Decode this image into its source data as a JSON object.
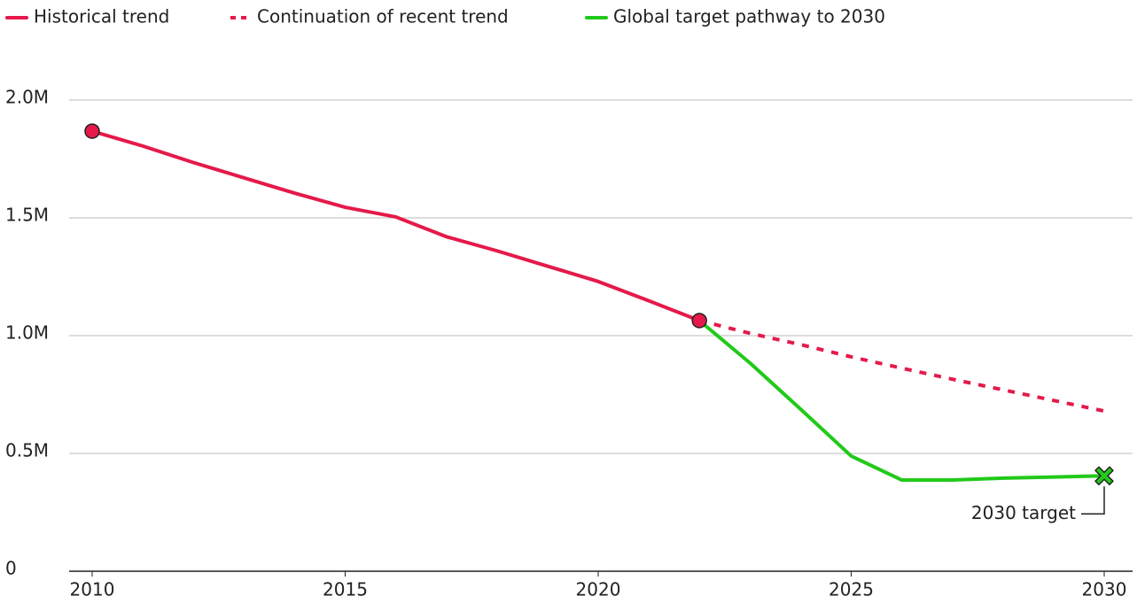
{
  "chart_data": {
    "type": "line",
    "xlim": [
      2010,
      2030
    ],
    "xticks": [
      2010,
      2015,
      2020,
      2025,
      2030
    ],
    "ylim": [
      0,
      2000000
    ],
    "yticks": [
      0,
      {
        "value": 500000,
        "label": "0.5M"
      },
      {
        "value": 1000000,
        "label": "1.0M"
      },
      {
        "value": 1500000,
        "label": "1.5M"
      },
      {
        "value": 2000000,
        "label": "2.0M"
      }
    ],
    "grid": true,
    "legend": "top-left",
    "series": [
      {
        "name": "Historical trend",
        "color": "#e5194a",
        "dashed": false,
        "x": [
          2010,
          2011,
          2012,
          2013,
          2014,
          2015,
          2016,
          2017,
          2018,
          2019,
          2020,
          2021,
          2022
        ],
        "values": [
          1868000,
          1805000,
          1735000,
          1670000,
          1605000,
          1545000,
          1504000,
          1420000,
          1360000,
          1295000,
          1230000,
          1148000,
          1064000
        ]
      },
      {
        "name": "Continuation of recent trend",
        "color": "#e5194a",
        "dashed": true,
        "x": [
          2022,
          2023,
          2024,
          2025,
          2026,
          2027,
          2028,
          2029,
          2030
        ],
        "values": [
          1064000,
          1010000,
          962000,
          910000,
          862000,
          815000,
          770000,
          725000,
          680000
        ]
      },
      {
        "name": "Global target pathway to 2030",
        "color": "#22c91a",
        "dashed": false,
        "x": [
          2022,
          2023,
          2024,
          2025,
          2026,
          2027,
          2028,
          2029,
          2030
        ],
        "values": [
          1064000,
          884000,
          688000,
          489000,
          387000,
          387000,
          395000,
          400000,
          405000
        ]
      }
    ],
    "annotation": {
      "text": "2030 target",
      "x": 2030,
      "value": 405000
    }
  }
}
